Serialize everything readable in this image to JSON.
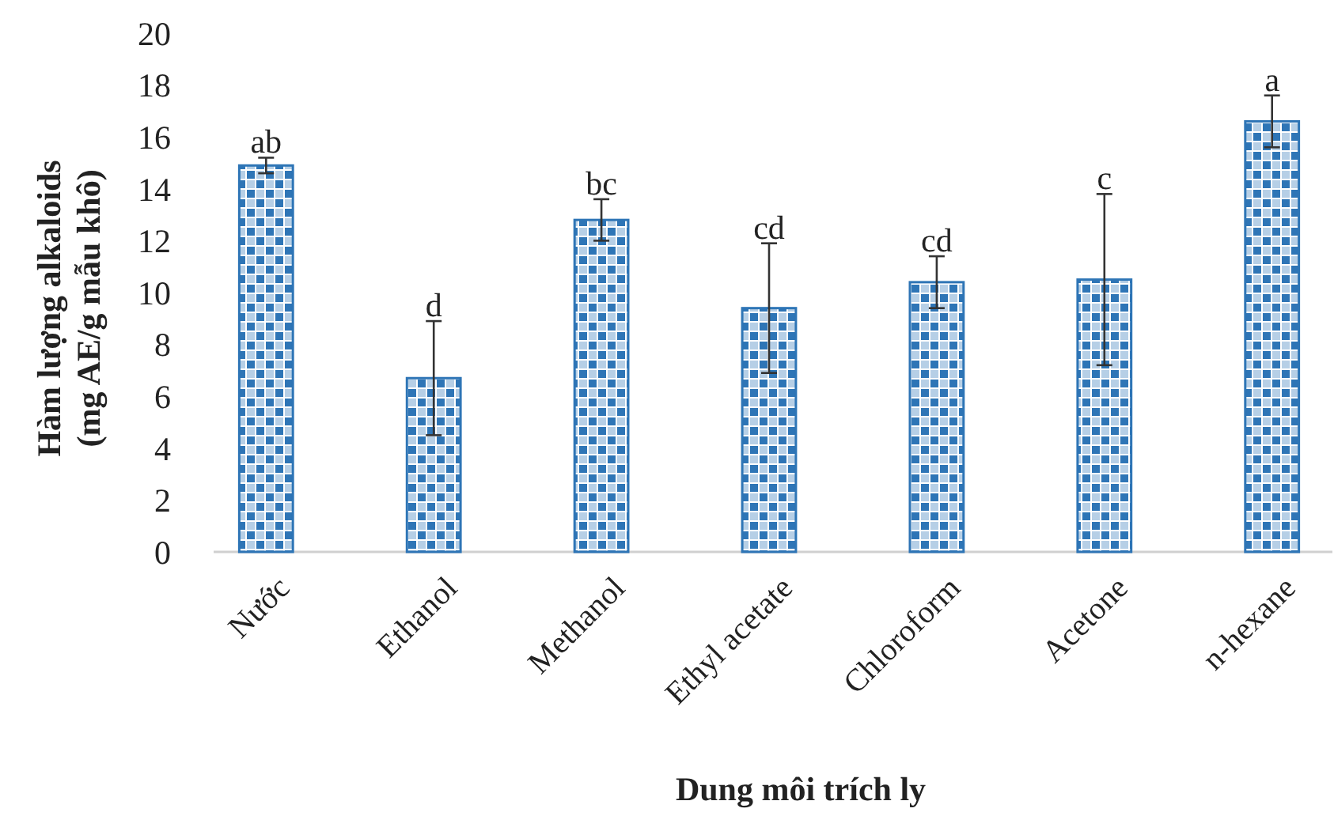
{
  "chart_data": {
    "type": "bar",
    "xlabel": "Dung môi trích ly",
    "ylabel": "Hàm lượng alkaloids\n(mg AE/g mẫu khô)",
    "categories": [
      "Nước",
      "Ethanol",
      "Methanol",
      "Ethyl acetate",
      "Chloroform",
      "Acetone",
      "n-hexane"
    ],
    "values": [
      14.9,
      6.7,
      12.8,
      9.4,
      10.4,
      10.5,
      16.6
    ],
    "errors": [
      0.3,
      2.2,
      0.8,
      2.5,
      1.0,
      3.3,
      1.0
    ],
    "color": "#2e75b6",
    "ylim": [
      0,
      20
    ],
    "yticks": [
      0,
      2,
      4,
      6,
      8,
      10,
      12,
      14,
      16,
      18,
      20
    ],
    "grid": false,
    "annotations": [
      "ab",
      "d",
      "bc",
      "cd",
      "cd",
      "c",
      "a"
    ]
  }
}
